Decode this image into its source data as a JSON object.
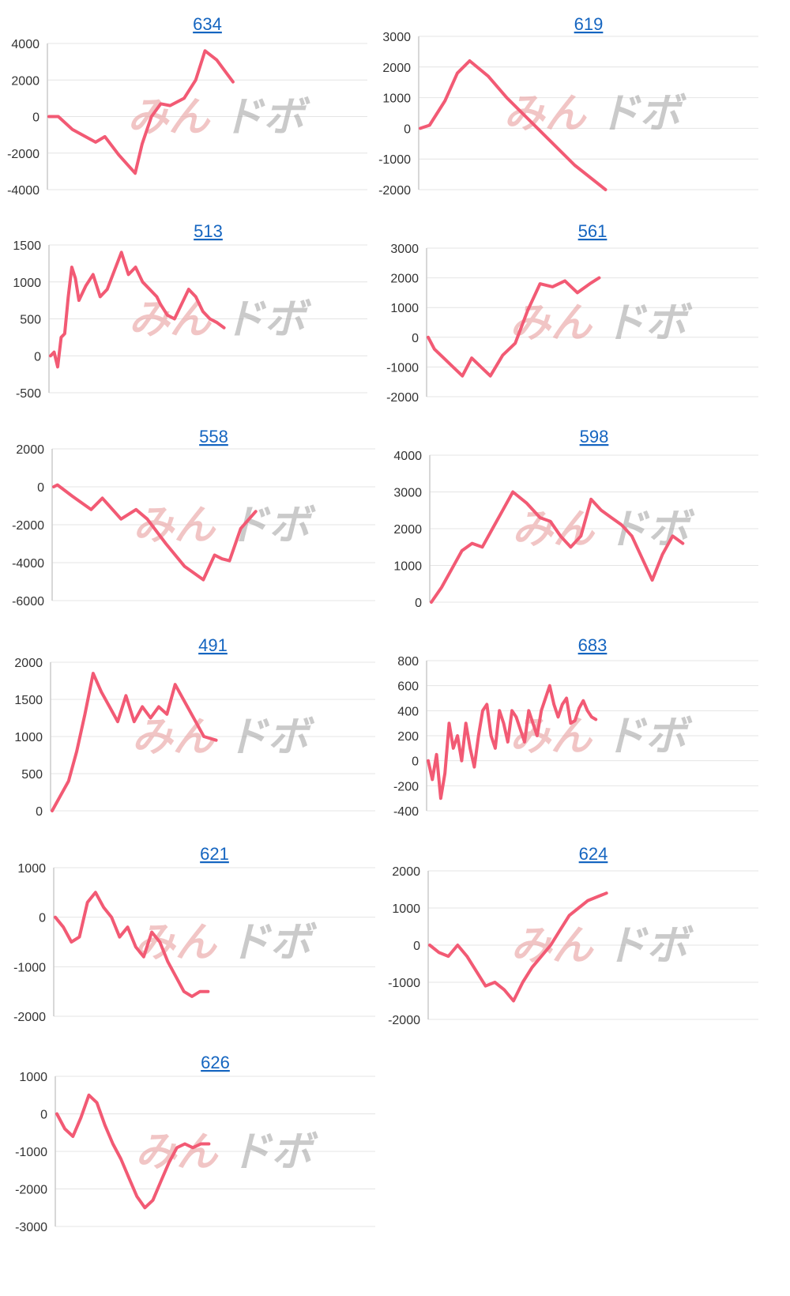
{
  "style": {
    "line_color": "#f25a74",
    "title_color": "#1565c0"
  },
  "watermark": {
    "part1": "みん",
    "part2": "ドボ"
  },
  "chart_data": [
    {
      "type": "line",
      "title": "634",
      "yticks": [
        "4000",
        "2000",
        "0",
        "-2000",
        "-4000"
      ],
      "ylim": [
        -4000,
        4000
      ],
      "x": [
        0,
        4,
        10,
        20,
        24,
        30,
        37,
        40,
        44,
        48,
        52,
        58,
        63,
        67,
        72,
        79
      ],
      "values": [
        0,
        0,
        -700,
        -1400,
        -1100,
        -2100,
        -3100,
        -1500,
        0,
        700,
        600,
        1000,
        2000,
        3600,
        3100,
        1900
      ]
    },
    {
      "type": "line",
      "title": "619",
      "yticks": [
        "3000",
        "2000",
        "1000",
        "0",
        "-1000",
        "-2000"
      ],
      "ylim": [
        -2000,
        3000
      ],
      "x": [
        0,
        3,
        8,
        12,
        16,
        22,
        28,
        40,
        50,
        60
      ],
      "values": [
        0,
        100,
        900,
        1800,
        2200,
        1700,
        1000,
        -200,
        -1200,
        -2000
      ]
    },
    {
      "type": "line",
      "title": "513",
      "yticks": [
        "1500",
        "1000",
        "500",
        "0",
        "-500"
      ],
      "ylim": [
        -500,
        1500
      ],
      "x": [
        0,
        1,
        2,
        3,
        4,
        5,
        6,
        7,
        8,
        10,
        12,
        14,
        16,
        18,
        20,
        22,
        24,
        26,
        28,
        30,
        31,
        33,
        35,
        37,
        39,
        41,
        43,
        45,
        47,
        49
      ],
      "values": [
        0,
        50,
        -150,
        250,
        300,
        800,
        1200,
        1050,
        750,
        950,
        1100,
        800,
        900,
        1150,
        1400,
        1100,
        1200,
        1000,
        900,
        800,
        700,
        550,
        500,
        700,
        900,
        800,
        600,
        500,
        450,
        380
      ]
    },
    {
      "type": "line",
      "title": "561",
      "yticks": [
        "3000",
        "2000",
        "1000",
        "0",
        "-1000",
        "-2000"
      ],
      "ylim": [
        -2000,
        3000
      ],
      "x": [
        0,
        2,
        5,
        8,
        11,
        14,
        17,
        20,
        24,
        28,
        32,
        36,
        40,
        44,
        46,
        48,
        52,
        55
      ],
      "values": [
        0,
        -400,
        -700,
        -1000,
        -1300,
        -700,
        -1000,
        -1300,
        -600,
        -200,
        900,
        1800,
        1700,
        1900,
        1700,
        1500,
        1800,
        2000
      ]
    },
    {
      "type": "line",
      "title": "558",
      "yticks": [
        "2000",
        "0",
        "-2000",
        "-4000",
        "-6000"
      ],
      "ylim": [
        -6000,
        2000
      ],
      "x": [
        0,
        1,
        5,
        10,
        13,
        18,
        22,
        25,
        30,
        35,
        40,
        43,
        45,
        47,
        50,
        54
      ],
      "values": [
        0,
        100,
        -500,
        -1200,
        -600,
        -1700,
        -1200,
        -1700,
        -3000,
        -4200,
        -4900,
        -3600,
        -3800,
        -3900,
        -2200,
        -1300
      ]
    },
    {
      "type": "line",
      "title": "598",
      "yticks": [
        "4000",
        "3000",
        "2000",
        "1000",
        "0"
      ],
      "ylim": [
        0,
        4000
      ],
      "x": [
        0,
        3,
        6,
        9,
        12,
        15,
        18,
        21,
        24,
        28,
        32,
        35,
        38,
        41,
        44,
        47,
        50,
        53,
        56,
        59,
        62,
        65,
        68,
        71,
        74
      ],
      "values": [
        0,
        400,
        900,
        1400,
        1600,
        1500,
        2000,
        2500,
        3000,
        2700,
        2300,
        2200,
        1800,
        1500,
        1800,
        2800,
        2500,
        2300,
        2100,
        1800,
        1200,
        600,
        1300,
        1800,
        1600
      ]
    },
    {
      "type": "line",
      "title": "491",
      "yticks": [
        "2000",
        "1500",
        "1000",
        "500",
        "0"
      ],
      "ylim": [
        0,
        2000
      ],
      "x": [
        0,
        2,
        4,
        6,
        8,
        10,
        12,
        14,
        16,
        18,
        20,
        22,
        24,
        26,
        28,
        30,
        33,
        35,
        37,
        40
      ],
      "values": [
        0,
        200,
        400,
        800,
        1300,
        1850,
        1600,
        1400,
        1200,
        1550,
        1200,
        1400,
        1250,
        1400,
        1300,
        1700,
        1400,
        1200,
        1000,
        950
      ]
    },
    {
      "type": "line",
      "title": "683",
      "yticks": [
        "800",
        "600",
        "400",
        "200",
        "0",
        "-200",
        "-400"
      ],
      "ylim": [
        -400,
        800
      ],
      "x": [
        0,
        1,
        2,
        3,
        4,
        5,
        6,
        7,
        8,
        9,
        10,
        11,
        12,
        13,
        14,
        15,
        16,
        17,
        18,
        19,
        20,
        21,
        22,
        23,
        24,
        25,
        26,
        27,
        28,
        29,
        30,
        31,
        32,
        33,
        34,
        35,
        36,
        37,
        38,
        39,
        40
      ],
      "values": [
        0,
        -150,
        50,
        -300,
        -100,
        300,
        100,
        200,
        0,
        300,
        100,
        -50,
        200,
        400,
        450,
        200,
        100,
        400,
        300,
        150,
        400,
        350,
        250,
        150,
        400,
        300,
        200,
        400,
        500,
        600,
        450,
        350,
        450,
        500,
        300,
        320,
        420,
        480,
        400,
        350,
        330
      ]
    },
    {
      "type": "line",
      "title": "621",
      "yticks": [
        "1000",
        "0",
        "-1000",
        "-2000"
      ],
      "ylim": [
        -2000,
        1000
      ],
      "x": [
        0,
        3,
        6,
        9,
        12,
        15,
        18,
        21,
        24,
        27,
        30,
        33,
        36,
        39,
        42,
        45,
        48,
        51,
        54,
        57
      ],
      "values": [
        0,
        -200,
        -500,
        -400,
        300,
        500,
        200,
        0,
        -400,
        -200,
        -600,
        -800,
        -300,
        -500,
        -900,
        -1200,
        -1500,
        -1600,
        -1500,
        -1500
      ]
    },
    {
      "type": "line",
      "title": "624",
      "yticks": [
        "2000",
        "1000",
        "0",
        "-1000",
        "-2000"
      ],
      "ylim": [
        -2000,
        2000
      ],
      "x": [
        0,
        3,
        6,
        9,
        12,
        15,
        18,
        21,
        24,
        27,
        30,
        33,
        36,
        39,
        42,
        45,
        48,
        51,
        54,
        57
      ],
      "values": [
        0,
        -200,
        -300,
        0,
        -300,
        -700,
        -1100,
        -1000,
        -1200,
        -1500,
        -1000,
        -600,
        -300,
        0,
        400,
        800,
        1000,
        1200,
        1300,
        1400
      ]
    },
    {
      "type": "line",
      "title": "626",
      "yticks": [
        "1000",
        "0",
        "-1000",
        "-2000",
        "-3000"
      ],
      "ylim": [
        -3000,
        1000
      ],
      "x": [
        0,
        3,
        6,
        9,
        12,
        15,
        18,
        21,
        24,
        27,
        30,
        33,
        36,
        39,
        42,
        45,
        48,
        51,
        54,
        57
      ],
      "values": [
        0,
        -400,
        -600,
        -100,
        500,
        300,
        -300,
        -800,
        -1200,
        -1700,
        -2200,
        -2500,
        -2300,
        -1800,
        -1300,
        -900,
        -800,
        -900,
        -800,
        -800
      ]
    }
  ]
}
